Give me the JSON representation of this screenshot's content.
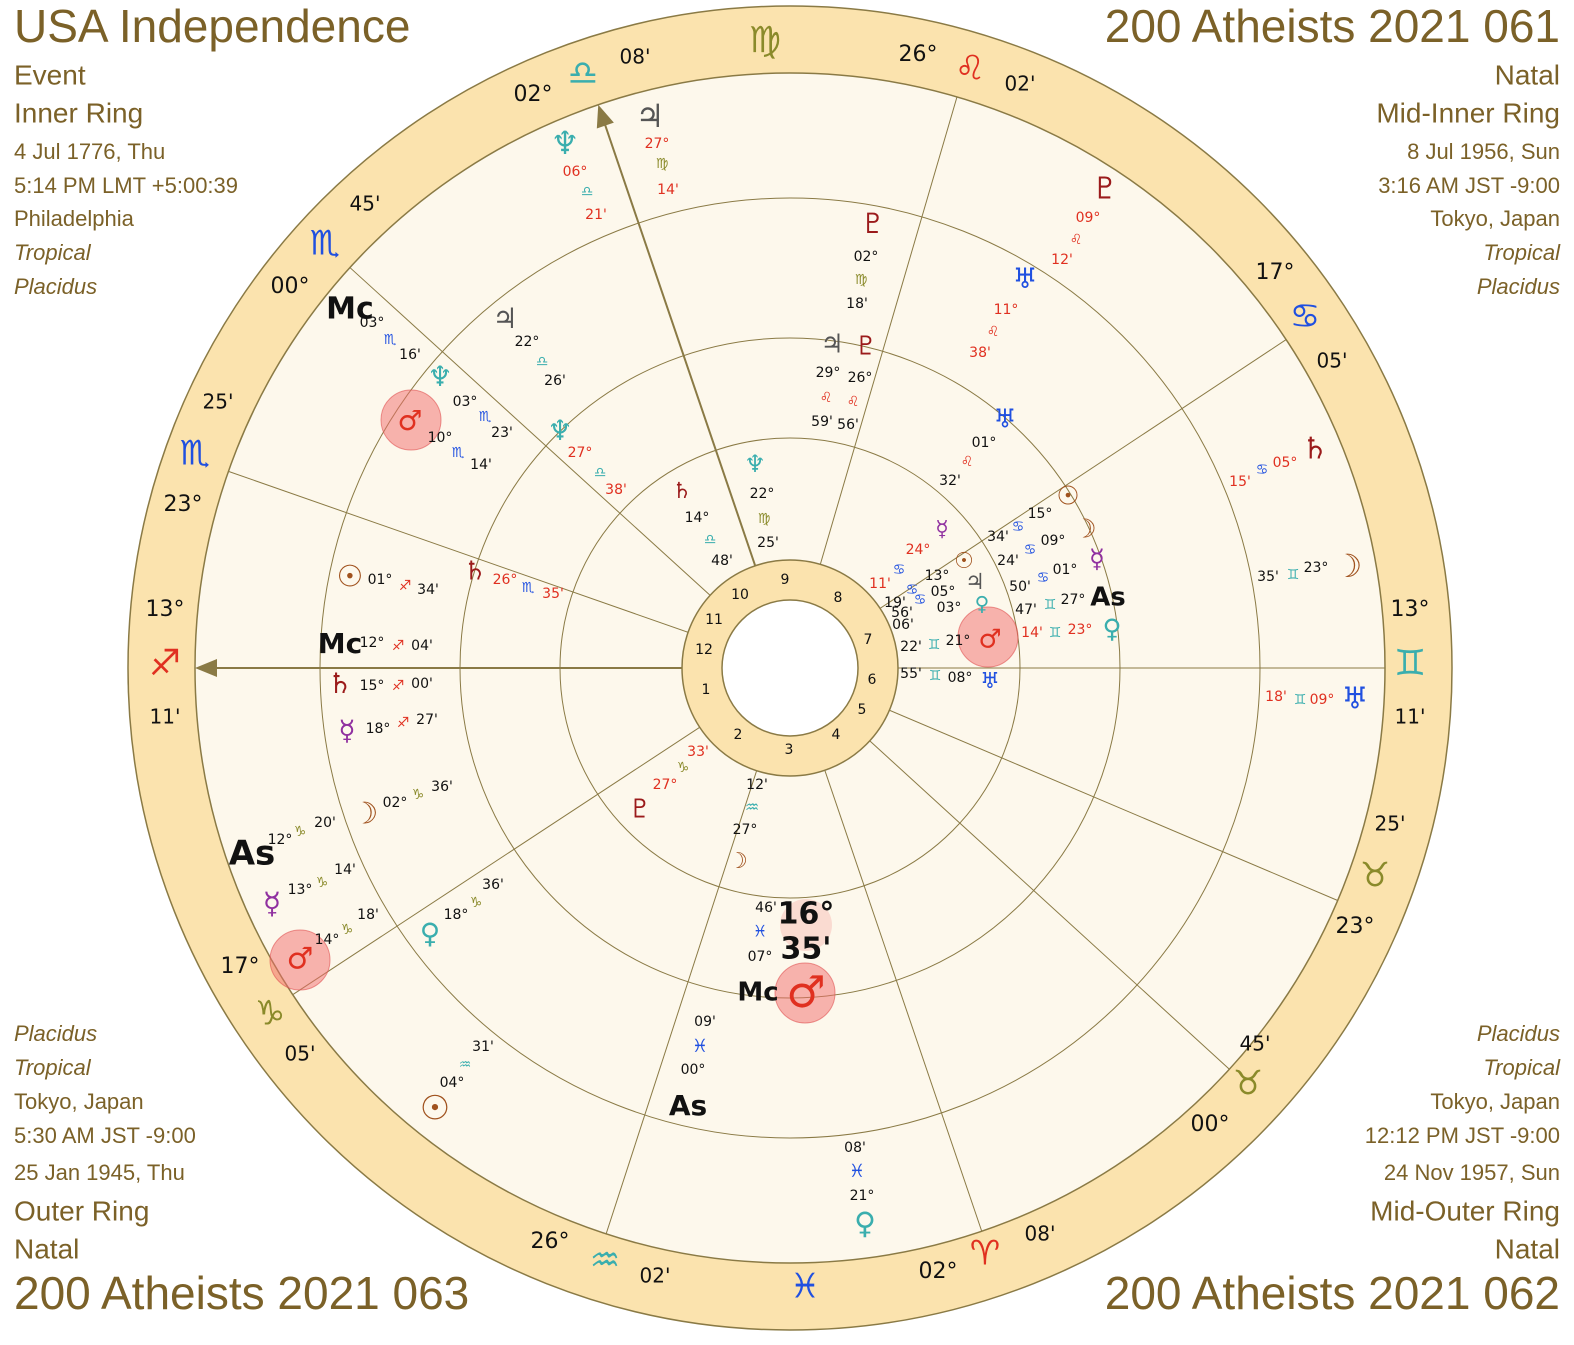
{
  "corners": {
    "top_left": [
      "USA Independence",
      "Event",
      "Inner Ring",
      "4 Jul 1776, Thu",
      "5:14 PM LMT +5:00:39",
      "Philadelphia",
      "Tropical",
      "Placidus"
    ],
    "top_right": [
      "200 Atheists 2021 061",
      "Natal",
      "Mid-Inner Ring",
      "8 Jul 1956, Sun",
      "3:16 AM JST -9:00",
      "Tokyo, Japan",
      "Tropical",
      "Placidus"
    ],
    "bottom_left": [
      "Placidus",
      "Tropical",
      "Tokyo, Japan",
      "5:30 AM JST -9:00",
      "25 Jan 1945, Thu",
      "Outer Ring",
      "Natal",
      "200 Atheists 2021 063"
    ],
    "bottom_right": [
      "Placidus",
      "Tropical",
      "Tokyo, Japan",
      "12:12 PM JST -9:00",
      "24 Nov 1957, Sun",
      "Mid-Outer Ring",
      "Natal",
      "200 Atheists 2021 062"
    ]
  },
  "wheel": {
    "house_numbers": [
      "1",
      "2",
      "3",
      "4",
      "5",
      "6",
      "7",
      "8",
      "9",
      "10",
      "11",
      "12"
    ],
    "cusp_labels": [
      "08'",
      "♍",
      "26°",
      "♌",
      "02'",
      "02°",
      "♎",
      "45'",
      "♏",
      "00°",
      "17°",
      "♋",
      "05'",
      "25'",
      "♏",
      "23°",
      "13°",
      "♐",
      "11'",
      "13°",
      "♊",
      "11'",
      "25'",
      "♉",
      "23°",
      "17°",
      "♑",
      "05'",
      "45'",
      "♉",
      "00°",
      "26°",
      "♒",
      "02'",
      "♓",
      "02°",
      "♈",
      "08'"
    ],
    "planet_labels": [
      "♃",
      "27°",
      "♍",
      "14'",
      "♆",
      "06°",
      "♎",
      "21'",
      "♇",
      "09°",
      "♌",
      "12'",
      "♅",
      "11°",
      "♌",
      "38'",
      "♄",
      "05°",
      "♋",
      "15'",
      "☽",
      "23°",
      "♊",
      "35'",
      "♅",
      "09°",
      "♊",
      "18'",
      "Mc",
      "03°",
      "♏",
      "16'",
      "♂",
      "10°",
      "♏",
      "14'",
      "♆",
      "03°",
      "♏",
      "23'",
      "As",
      "12°",
      "♑",
      "20'",
      "☿",
      "13°",
      "♑",
      "14'",
      "♂",
      "14°",
      "♑",
      "18'",
      "☉",
      "04°",
      "♒",
      "31'",
      "♃",
      "22°",
      "♎",
      "26'",
      "♆",
      "27°",
      "♎",
      "38'",
      "♇",
      "02°",
      "♍",
      "18'",
      "♃",
      "29°",
      "♌",
      "59'",
      "♇",
      "26°",
      "♌",
      "56'",
      "♅",
      "01°",
      "♌",
      "32'",
      "☉",
      "01°",
      "♐",
      "34'",
      "Mc",
      "12°",
      "♐",
      "04'",
      "♄",
      "15°",
      "♐",
      "00'",
      "☿",
      "18°",
      "♐",
      "27'",
      "☽",
      "02°",
      "♑",
      "36'",
      "♀",
      "18°",
      "♑",
      "36'",
      "♄",
      "26°",
      "♏",
      "35'",
      "♇",
      "27°",
      "♑",
      "33'",
      "09'",
      "♓",
      "00°",
      "As",
      "08'",
      "♓",
      "21°",
      "♀",
      "☉",
      "15°",
      "☽",
      "♋",
      "09°",
      "34'",
      "☿",
      "♋",
      "24'",
      "01°",
      "♋",
      "50'",
      "As",
      "27°",
      "♊",
      "47'",
      "♀",
      "23°",
      "♊",
      "14'",
      "♆",
      "22°",
      "♍",
      "25'",
      "♄",
      "14°",
      "♎",
      "48'",
      "♂",
      "21°",
      "♊",
      "22'",
      "♅",
      "08°",
      "♊",
      "55'",
      "☿",
      "24°",
      "☉",
      "♃",
      "♀",
      "13°",
      "05°",
      "03°",
      "11'",
      "♋",
      "19'",
      "♋",
      "♋",
      "56'",
      "06'",
      "12'",
      "♒",
      "27°",
      "☽",
      "46'",
      "♓",
      "07°",
      "16°",
      "35'",
      "♂",
      "Mc"
    ]
  }
}
